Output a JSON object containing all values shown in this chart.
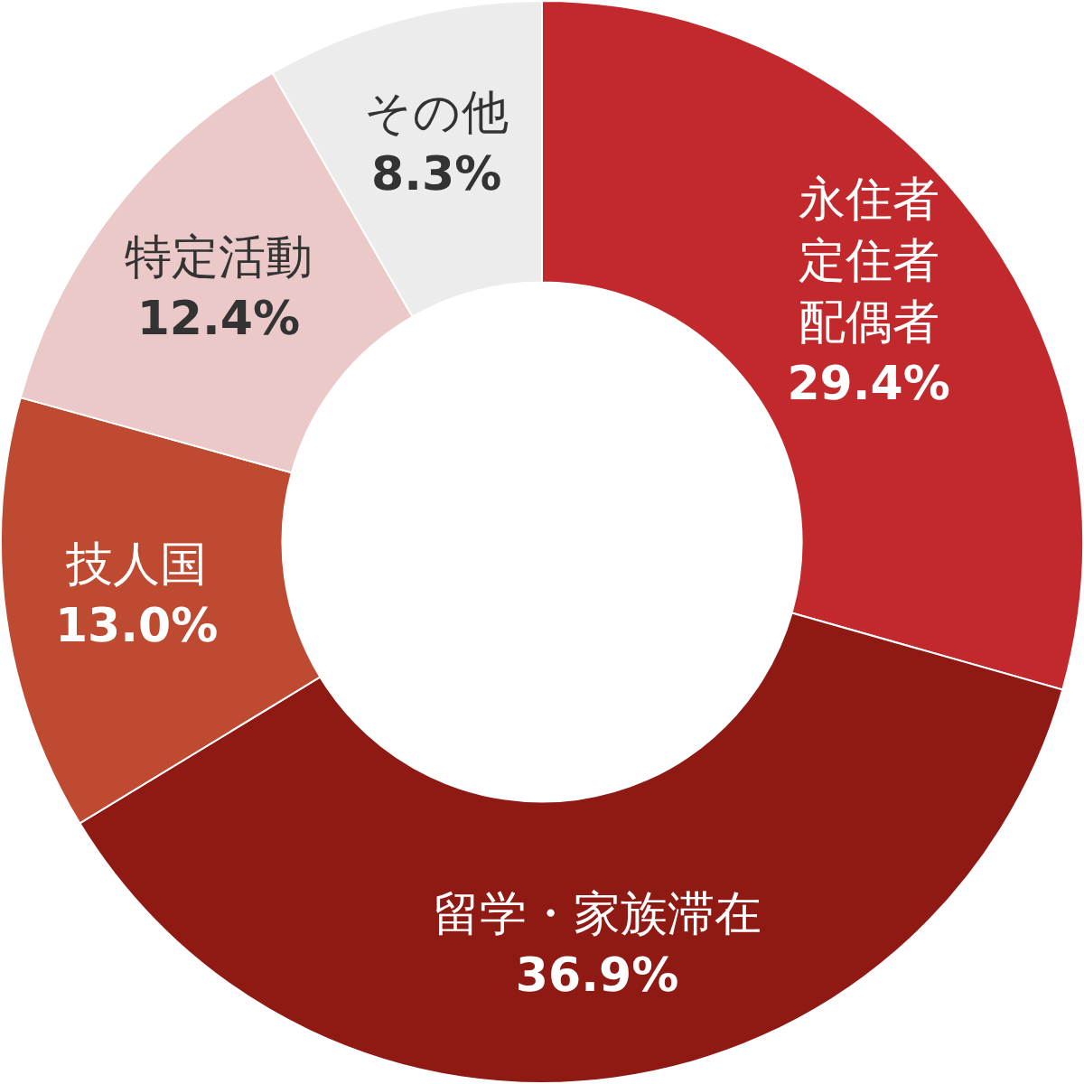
{
  "chart_data": {
    "type": "donut",
    "categories": [
      "永住者定住者配偶者",
      "留学・家族滞在",
      "技人国",
      "特定活動",
      "その他"
    ],
    "values": [
      29.4,
      36.9,
      13.0,
      12.4,
      8.3
    ],
    "value_labels": [
      "29.4%",
      "36.9%",
      "13.0%",
      "12.4%",
      "8.3%"
    ],
    "colors": [
      "#c1292c",
      "#8f1a14",
      "#bf4a32",
      "#ecc9c9",
      "#ececec"
    ],
    "legend": false
  }
}
